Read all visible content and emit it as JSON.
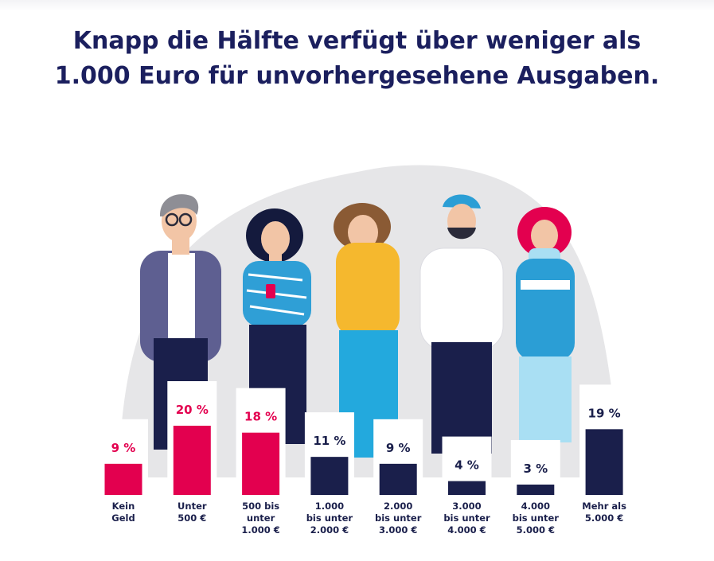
{
  "title": {
    "line1": "Knapp die Hälfte verfügt über weniger als",
    "line2": "1.000 Euro für unvorhergesehene Ausgaben."
  },
  "colors": {
    "highlight": "#e3004f",
    "dark": "#1a1f4b",
    "title": "#1b1f5e",
    "backdrop": "#e6e6e8"
  },
  "chart_data": {
    "type": "bar",
    "categories": [
      [
        "Kein",
        "Geld"
      ],
      [
        "Unter",
        "500 €"
      ],
      [
        "500 bis",
        "unter",
        "1.000 €"
      ],
      [
        "1.000",
        "bis unter",
        "2.000 €"
      ],
      [
        "2.000",
        "bis unter",
        "3.000 €"
      ],
      [
        "3.000",
        "bis unter",
        "4.000 €"
      ],
      [
        "4.000",
        "bis unter",
        "5.000 €"
      ],
      [
        "Mehr als",
        "5.000 €"
      ]
    ],
    "values": [
      9,
      20,
      18,
      11,
      9,
      4,
      3,
      19
    ],
    "value_labels": [
      "9 %",
      "20 %",
      "18 %",
      "11 %",
      "9 %",
      "4 %",
      "3 %",
      "19 %"
    ],
    "highlighted": [
      true,
      true,
      true,
      false,
      false,
      false,
      false,
      false
    ],
    "unit": "%",
    "ylim": [
      0,
      20
    ],
    "grid": false,
    "legend": "none"
  }
}
